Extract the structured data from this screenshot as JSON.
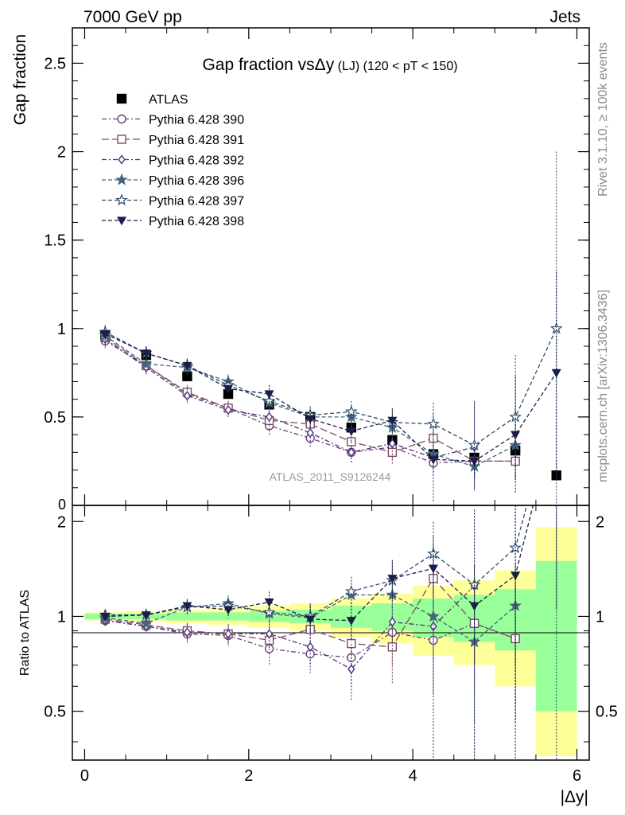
{
  "header": {
    "energy_label": "7000 GeV pp",
    "process_label": "Jets",
    "right_label_top": "Rivet 3.1.10, ≥ 100k events",
    "right_label_bottom": "mcplots.cern.ch [arXiv:1306.3436]"
  },
  "chart_data": [
    {
      "type": "line",
      "panel": "main",
      "title": "Gap fraction vsΔy (LJ) (120 < pT < 150)",
      "title_main": "Gap fraction vs",
      "title_delta": "Δy",
      "title_small": " (LJ) (120 < pT < 150)",
      "ylabel": "Gap fraction",
      "xlabel": "|Δy|",
      "xlim": [
        -0.15,
        6.15
      ],
      "ylim": [
        0,
        2.7
      ],
      "x_ticks": [
        0,
        2,
        4,
        6
      ],
      "y_ticks": [
        0.5,
        1,
        1.5,
        2,
        2.5
      ],
      "y_tick_labels": [
        "0.5",
        "1",
        "1.5",
        "2",
        "2.5"
      ],
      "y_zero_label": "0",
      "watermark": "ATLAS_2011_S9126244",
      "legend_position": "top-left",
      "x": [
        0.25,
        0.75,
        1.25,
        1.75,
        2.25,
        2.75,
        3.25,
        3.75,
        4.25,
        4.75,
        5.25,
        5.75
      ],
      "series": [
        {
          "name": "ATLAS",
          "color": "#000000",
          "marker": "filled-square",
          "values": [
            0.96,
            0.85,
            0.73,
            0.63,
            0.57,
            0.5,
            0.44,
            0.37,
            0.29,
            0.27,
            0.31,
            0.17
          ]
        },
        {
          "name": "Pythia 6.428 390",
          "color": "#6b3f78",
          "marker": "open-circle",
          "dash": "6,3,2,3",
          "values": [
            0.93,
            0.79,
            0.63,
            0.55,
            0.45,
            0.38,
            0.3,
            0.33,
            0.24,
            0.25,
            0.25,
            null
          ],
          "errors": [
            0.04,
            0.04,
            0.04,
            0.04,
            0.05,
            0.05,
            0.06,
            0.07,
            0.08,
            0.1,
            0.12,
            null
          ]
        },
        {
          "name": "Pythia 6.428 391",
          "color": "#7d4e5e",
          "marker": "open-square",
          "dash": "9,4",
          "values": [
            0.95,
            0.79,
            0.64,
            0.55,
            0.48,
            0.46,
            0.36,
            0.3,
            0.38,
            0.25,
            0.25,
            null
          ],
          "errors": [
            0.04,
            0.04,
            0.04,
            0.04,
            0.05,
            0.05,
            0.06,
            0.07,
            0.08,
            0.1,
            0.12,
            null
          ]
        },
        {
          "name": "Pythia 6.428 392",
          "color": "#4a2f80",
          "marker": "open-diamond",
          "dash": "6,3,2,3",
          "values": [
            0.94,
            0.78,
            0.62,
            0.54,
            0.5,
            0.41,
            0.3,
            0.35,
            0.27,
            0.33,
            null,
            null
          ],
          "errors": [
            0.04,
            0.04,
            0.04,
            0.04,
            0.05,
            0.05,
            0.06,
            0.07,
            0.25,
            0.25,
            null,
            null
          ]
        },
        {
          "name": "Pythia 6.428 396",
          "color": "#44647a",
          "marker": "filled-star",
          "dash": "5,3",
          "values": [
            0.96,
            0.8,
            0.78,
            0.7,
            0.58,
            0.5,
            0.5,
            0.44,
            0.29,
            0.22,
            0.34,
            null
          ],
          "errors": [
            0.04,
            0.04,
            0.04,
            0.04,
            0.05,
            0.05,
            0.06,
            0.07,
            0.08,
            0.1,
            0.12,
            null
          ]
        },
        {
          "name": "Pythia 6.428 397",
          "color": "#2e4d6e",
          "marker": "open-star",
          "dash": "5,3",
          "values": [
            0.98,
            0.86,
            0.79,
            0.68,
            0.59,
            0.51,
            0.53,
            0.47,
            0.46,
            0.34,
            0.5,
            1.0
          ],
          "errors": [
            0.04,
            0.04,
            0.04,
            0.04,
            0.05,
            0.05,
            0.06,
            0.07,
            0.12,
            0.25,
            0.35,
            1.0
          ]
        },
        {
          "name": "Pythia 6.428 398",
          "color": "#1a1f4a",
          "marker": "filled-triangle-down",
          "dash": "5,3",
          "values": [
            0.97,
            0.86,
            0.79,
            0.66,
            0.63,
            0.49,
            0.42,
            0.48,
            0.26,
            0.25,
            0.4,
            0.75
          ],
          "errors": [
            0.04,
            0.04,
            0.04,
            0.04,
            0.05,
            0.05,
            0.06,
            0.07,
            0.08,
            0.1,
            0.33,
            0.57
          ]
        }
      ]
    },
    {
      "type": "line",
      "panel": "ratio",
      "ylabel": "Ratio to ATLAS",
      "xlabel": "|Δy|",
      "xlim": [
        -0.15,
        6.15
      ],
      "ylim": [
        0.35,
        2.25
      ],
      "y_scale": "log",
      "x_ticks": [
        0,
        2,
        4,
        6
      ],
      "x_tick_labels": [
        "0",
        "2",
        "4",
        "6"
      ],
      "y_ticks": [
        0.5,
        1,
        2
      ],
      "y_tick_labels": [
        "0.5",
        "1",
        "2"
      ],
      "x": [
        0.25,
        0.75,
        1.25,
        1.75,
        2.25,
        2.75,
        3.25,
        3.75,
        4.25,
        4.75,
        5.25,
        5.75
      ],
      "bin_edges": [
        0,
        0.5,
        1,
        1.5,
        2,
        2.5,
        3,
        3.5,
        4,
        4.5,
        5,
        5.5,
        6
      ],
      "uncertainty_band_inner": [
        0.02,
        0.02,
        0.03,
        0.03,
        0.04,
        0.05,
        0.08,
        0.1,
        0.14,
        0.17,
        0.22,
        0.5
      ],
      "uncertainty_band_outer": [
        0.03,
        0.04,
        0.05,
        0.06,
        0.08,
        0.1,
        0.14,
        0.18,
        0.25,
        0.3,
        0.4,
        0.92
      ],
      "band_colors": {
        "inner": "#99ff99",
        "outer": "#ffff99"
      },
      "series": [
        {
          "name": "Pythia 6.428 390",
          "color": "#6b3f78",
          "marker": "open-circle",
          "dash": "6,3,2,3",
          "values": [
            0.97,
            0.93,
            0.88,
            0.87,
            0.79,
            0.76,
            0.74,
            0.89,
            0.84,
            0.95,
            0.85,
            null
          ]
        },
        {
          "name": "Pythia 6.428 391",
          "color": "#7d4e5e",
          "marker": "open-square",
          "dash": "9,4",
          "values": [
            0.98,
            0.94,
            0.9,
            0.88,
            0.84,
            0.91,
            0.82,
            0.8,
            1.32,
            0.95,
            0.85,
            null
          ]
        },
        {
          "name": "Pythia 6.428 392",
          "color": "#4a2f80",
          "marker": "open-diamond",
          "dash": "6,3,2,3",
          "values": [
            0.97,
            0.93,
            0.89,
            0.88,
            0.88,
            0.8,
            0.68,
            0.96,
            0.93,
            1.25,
            null,
            null
          ]
        },
        {
          "name": "Pythia 6.428 396",
          "color": "#44647a",
          "marker": "filled-star",
          "dash": "5,3",
          "values": [
            0.99,
            0.95,
            1.07,
            1.1,
            1.02,
            0.99,
            1.17,
            1.17,
            1.0,
            0.83,
            1.08,
            null
          ]
        },
        {
          "name": "Pythia 6.428 397",
          "color": "#2e4d6e",
          "marker": "open-star",
          "dash": "5,3",
          "values": [
            1.01,
            1.01,
            1.07,
            1.08,
            1.03,
            1.0,
            1.2,
            1.3,
            1.58,
            1.26,
            1.65,
            5.0
          ]
        },
        {
          "name": "Pythia 6.428 398",
          "color": "#1a1f4a",
          "marker": "filled-triangle-down",
          "dash": "5,3",
          "values": [
            1.0,
            1.01,
            1.08,
            1.05,
            1.11,
            0.98,
            0.97,
            1.32,
            1.42,
            1.08,
            1.35,
            4.4
          ]
        }
      ]
    }
  ]
}
